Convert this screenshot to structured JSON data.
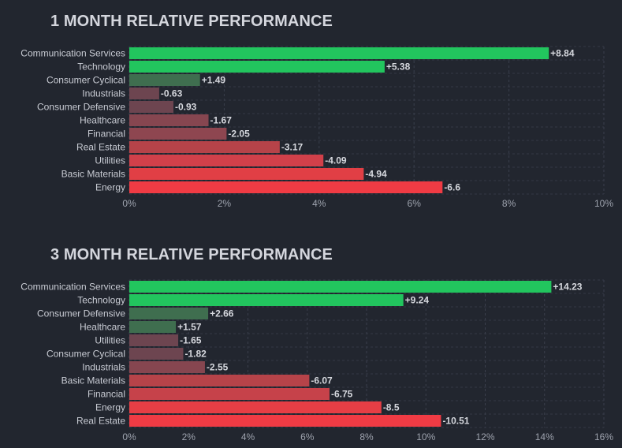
{
  "charts": [
    {
      "title": "1 MONTH RELATIVE PERFORMANCE",
      "chart_data": {
        "type": "bar",
        "orientation": "horizontal",
        "title": "1 MONTH RELATIVE PERFORMANCE",
        "categories": [
          "Communication Services",
          "Technology",
          "Consumer Cyclical",
          "Industrials",
          "Consumer Defensive",
          "Healthcare",
          "Financial",
          "Real Estate",
          "Utilities",
          "Basic Materials",
          "Energy"
        ],
        "values": [
          8.84,
          5.38,
          1.49,
          -0.63,
          -0.93,
          -1.67,
          -2.05,
          -3.17,
          -4.09,
          -4.94,
          -6.6
        ],
        "value_labels": [
          "+8.84",
          "+5.38",
          "+1.49",
          "-0.63",
          "-0.93",
          "-1.67",
          "-2.05",
          "-3.17",
          "-4.09",
          "-4.94",
          "-6.6"
        ],
        "bar_colors": [
          "#22c55e",
          "#22c55e",
          "#3f6e4f",
          "#6d4550",
          "#6d4550",
          "#864650",
          "#8e4650",
          "#b64349",
          "#d1404a",
          "#e13f45",
          "#f03b44"
        ],
        "xlim": [
          0,
          10
        ],
        "xticks": [
          "0%",
          "2%",
          "4%",
          "6%",
          "8%",
          "10%"
        ],
        "xlabel": "",
        "ylabel": "",
        "grid": true
      }
    },
    {
      "title": "3 MONTH RELATIVE PERFORMANCE",
      "chart_data": {
        "type": "bar",
        "orientation": "horizontal",
        "title": "3 MONTH RELATIVE PERFORMANCE",
        "categories": [
          "Communication Services",
          "Technology",
          "Consumer Defensive",
          "Healthcare",
          "Utilities",
          "Consumer Cyclical",
          "Industrials",
          "Basic Materials",
          "Financial",
          "Energy",
          "Real Estate"
        ],
        "values": [
          14.23,
          9.24,
          2.66,
          1.57,
          -1.65,
          -1.82,
          -2.55,
          -6.07,
          -6.75,
          -8.5,
          -10.51
        ],
        "value_labels": [
          "+14.23",
          "+9.24",
          "+2.66",
          "+1.57",
          "-1.65",
          "-1.82",
          "-2.55",
          "-6.07",
          "-6.75",
          "-8.5",
          "-10.51"
        ],
        "bar_colors": [
          "#22c55e",
          "#22c55e",
          "#3f6e4f",
          "#3f6e4f",
          "#6d4550",
          "#6d4550",
          "#864650",
          "#b64349",
          "#c6424a",
          "#e63e45",
          "#f03b44"
        ],
        "xlim": [
          0,
          16
        ],
        "xticks": [
          "0%",
          "2%",
          "4%",
          "6%",
          "8%",
          "10%",
          "12%",
          "14%",
          "16%"
        ],
        "xlabel": "",
        "ylabel": "",
        "grid": true
      }
    }
  ]
}
